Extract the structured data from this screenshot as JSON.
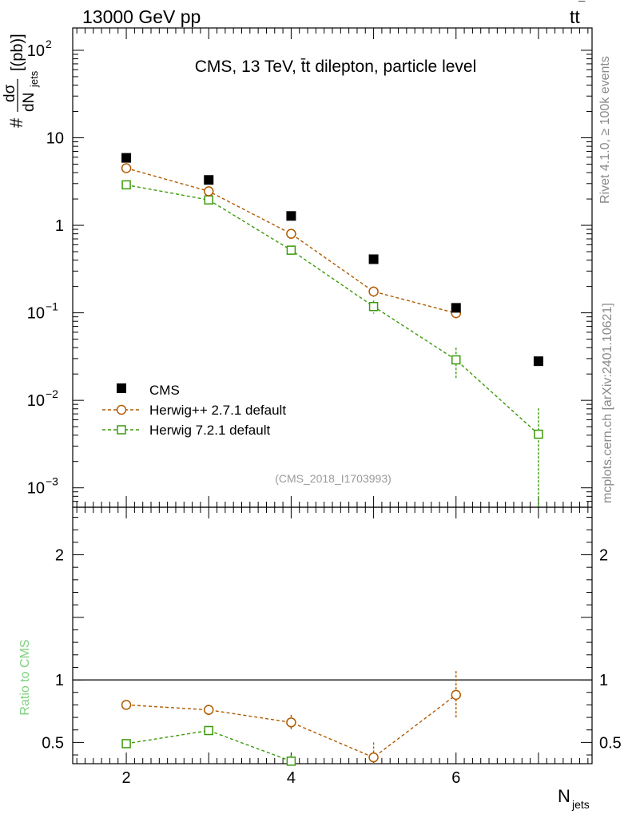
{
  "header": {
    "left": "13000 GeV pp",
    "right_main": "tt",
    "right_bar": "¯"
  },
  "side_labels": {
    "top": "Rivet 4.1.0, ≥ 100k events",
    "bottom": "mcplots.cern.ch [arXiv:2401.10621]"
  },
  "chart_data": [
    {
      "type": "scatter",
      "panel": "main",
      "title": "CMS, 13 TeV, t̄t dilepton, particle level",
      "ylabel": {
        "hash": "#",
        "num": "dσ",
        "den": "dN",
        "den_sub": "jets",
        "units": "[(pb)]"
      },
      "yscale": "log",
      "ylim": [
        0.0006,
        180
      ],
      "xlim": [
        1.35,
        7.65
      ],
      "y_ticks": [
        {
          "value": 100,
          "base": "10",
          "exp": "2"
        },
        {
          "value": 10,
          "base": "10",
          "exp": ""
        },
        {
          "value": 1,
          "base": "1",
          "exp": ""
        },
        {
          "value": 0.1,
          "base": "10",
          "exp": "−1"
        },
        {
          "value": 0.01,
          "base": "10",
          "exp": "−2"
        },
        {
          "value": 0.001,
          "base": "10",
          "exp": "−3"
        }
      ],
      "annotation": "(CMS_2018_I1703993)",
      "legend": {
        "position": "bottom-left",
        "entries": [
          "CMS",
          "Herwig++ 2.7.1 default",
          "Herwig 7.2.1 default"
        ]
      },
      "series": [
        {
          "name": "CMS",
          "marker": "square-filled",
          "color": "#000000",
          "x": [
            2,
            3,
            4,
            5,
            6,
            7
          ],
          "y": [
            5.9,
            3.3,
            1.28,
            0.41,
            0.114,
            0.028
          ]
        },
        {
          "name": "Herwig++ 2.7.1 default",
          "marker": "circle-open",
          "color": "#b05a00",
          "x": [
            2,
            3,
            4,
            5,
            6
          ],
          "y": [
            4.5,
            2.45,
            0.8,
            0.175,
            0.099
          ],
          "yerr": [
            0.12,
            0.1,
            0.05,
            0.025,
            0.015
          ]
        },
        {
          "name": "Herwig 7.2.1 default",
          "marker": "square-open",
          "color": "#3a9a0a",
          "x": [
            2,
            3,
            4,
            5,
            6,
            7
          ],
          "y": [
            2.9,
            1.95,
            0.52,
            0.118,
            0.029,
            0.0041
          ],
          "yerr_low": [
            0.1,
            0.09,
            0.04,
            0.02,
            0.011,
            0.0039
          ],
          "yerr_high": [
            0.1,
            0.09,
            0.04,
            0.02,
            0.011,
            0.004
          ]
        }
      ]
    },
    {
      "type": "scatter",
      "panel": "ratio",
      "ylabel": "Ratio to CMS",
      "xlabel_main": "N",
      "xlabel_sub": "jets",
      "ylim": [
        0.33,
        2.38
      ],
      "xlim": [
        1.35,
        7.65
      ],
      "y_ticks": [
        {
          "value": 2,
          "label": "2"
        },
        {
          "value": 1,
          "label": "1"
        },
        {
          "value": 0.5,
          "label": "0.5"
        }
      ],
      "x_ticks": [
        {
          "value": 2,
          "label": "2"
        },
        {
          "value": 4,
          "label": "4"
        },
        {
          "value": 6,
          "label": "6"
        }
      ],
      "reference_line": 1,
      "series": [
        {
          "name": "Herwig++ 2.7.1 default",
          "marker": "circle-open",
          "color": "#b05a00",
          "x": [
            2,
            3,
            4,
            5,
            6
          ],
          "y": [
            0.8,
            0.76,
            0.66,
            0.38,
            0.88
          ],
          "yerr": [
            0.022,
            0.04,
            0.06,
            0.12,
            0.19
          ]
        },
        {
          "name": "Herwig 7.2.1 default",
          "marker": "square-open",
          "color": "#3a9a0a",
          "x": [
            2,
            3,
            4
          ],
          "y": [
            0.49,
            0.595,
            0.35
          ],
          "yerr": [
            0.018,
            0.03,
            0.05
          ]
        }
      ]
    }
  ]
}
